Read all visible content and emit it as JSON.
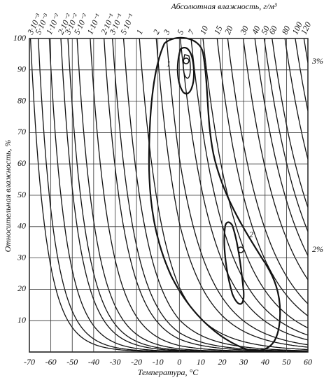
{
  "chart_data": {
    "type": "psychrometric",
    "x2label": "Абсолютная влажность, г/м³",
    "ylabel": "Относительная влажность, %",
    "xlabel": "Температура, °C",
    "xlim": [
      -70,
      60
    ],
    "ylim": [
      0,
      100
    ],
    "xticks": [
      -70,
      -60,
      -50,
      -40,
      -30,
      -20,
      -10,
      0,
      10,
      20,
      30,
      40,
      50,
      60
    ],
    "yticks": [
      10,
      20,
      30,
      40,
      50,
      60,
      70,
      80,
      90,
      100
    ],
    "grid": true,
    "color": "#111111",
    "humidity_curves": [
      {
        "value": 0.003,
        "label": "3·10⁻³"
      },
      {
        "value": 0.005,
        "label": "5·10⁻³"
      },
      {
        "value": 0.01,
        "label": "1·10⁻²"
      },
      {
        "value": 0.02,
        "label": "2·10⁻²"
      },
      {
        "value": 0.03,
        "label": "3·10⁻²"
      },
      {
        "value": 0.05,
        "label": "5·10⁻²"
      },
      {
        "value": 0.1,
        "label": "1·10⁻¹"
      },
      {
        "value": 0.2,
        "label": "2·10⁻¹"
      },
      {
        "value": 0.3,
        "label": "3·10⁻¹"
      },
      {
        "value": 0.5,
        "label": "5·10⁻¹"
      },
      1,
      2,
      3,
      5,
      7,
      10,
      15,
      20,
      30,
      40,
      50,
      60,
      80,
      100,
      120
    ],
    "annotations": [
      "1",
      "2",
      "3%",
      "2%"
    ]
  }
}
